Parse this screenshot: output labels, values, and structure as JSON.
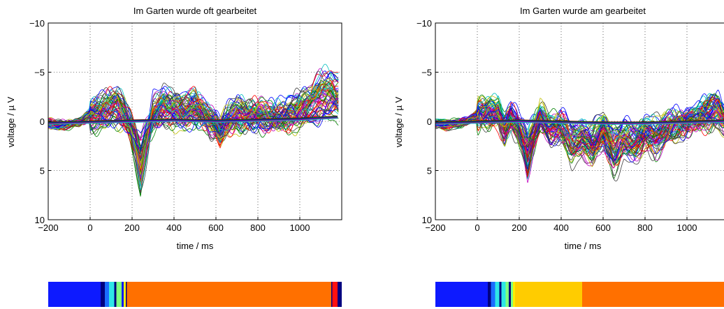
{
  "chart_data": [
    {
      "type": "line",
      "title": "Im Garten wurde oft gearbeitet",
      "xlabel": "time / ms",
      "ylabel": "voltage / µ V",
      "xlim": [
        -200,
        1200
      ],
      "ylim": [
        10,
        -10
      ],
      "y_axis_inverted": true,
      "grid": true,
      "x_ticks": [
        -200,
        0,
        200,
        400,
        600,
        800,
        1000
      ],
      "y_ticks": [
        -10,
        -5,
        0,
        5,
        10
      ],
      "series_count": 64,
      "series_colors": [
        "#0000ff",
        "#008000",
        "#ff0000",
        "#00bfbf",
        "#bf00bf",
        "#bfbf00",
        "#404040"
      ],
      "grand_average": {
        "x": [
          -200,
          -150,
          -100,
          -50,
          0,
          50,
          100,
          130,
          160,
          190,
          215,
          240,
          270,
          300,
          350,
          400,
          450,
          500,
          550,
          600,
          620,
          650,
          700,
          750,
          800,
          850,
          900,
          950,
          1000,
          1050,
          1100,
          1150,
          1180
        ],
        "y": [
          0.2,
          0.5,
          0.3,
          0.1,
          -0.8,
          -1.2,
          -1.8,
          -2.0,
          -1.0,
          0.5,
          2.5,
          5.0,
          2.0,
          -1.0,
          -1.8,
          -1.5,
          -1.2,
          -1.8,
          -0.8,
          0.5,
          1.2,
          0.0,
          -1.0,
          -0.8,
          -0.8,
          -0.5,
          -0.6,
          -1.0,
          -1.5,
          -2.0,
          -3.0,
          -3.5,
          -3.0
        ]
      },
      "flat_x": [
        -200,
        0,
        200,
        400,
        600,
        800,
        1000,
        1180
      ],
      "flat_y": [
        0.2,
        0.1,
        0.0,
        -0.1,
        0.0,
        -0.1,
        -0.2,
        -0.4
      ],
      "colorbar": {
        "segments": [
          {
            "from": -200,
            "to": 50,
            "color": "#0d1aff"
          },
          {
            "from": 50,
            "to": 70,
            "color": "#000080"
          },
          {
            "from": 70,
            "to": 90,
            "color": "#1a6cff"
          },
          {
            "from": 90,
            "to": 115,
            "color": "#2ee6e6"
          },
          {
            "from": 115,
            "to": 125,
            "color": "#000080"
          },
          {
            "from": 125,
            "to": 150,
            "color": "#7fff7f"
          },
          {
            "from": 150,
            "to": 160,
            "color": "#0d1aff"
          },
          {
            "from": 160,
            "to": 170,
            "color": "#ffee00"
          },
          {
            "from": 170,
            "to": 175,
            "color": "#000080"
          },
          {
            "from": 175,
            "to": 1150,
            "color": "#ff7000"
          },
          {
            "from": 1150,
            "to": 1155,
            "color": "#000080"
          },
          {
            "from": 1155,
            "to": 1180,
            "color": "#ff1010"
          },
          {
            "from": 1180,
            "to": 1200,
            "color": "#000080"
          }
        ]
      }
    },
    {
      "type": "line",
      "title": "Im Garten wurde am gearbeitet",
      "xlabel": "time / ms",
      "ylabel": "voltage / µ V",
      "xlim": [
        -200,
        1200
      ],
      "ylim": [
        10,
        -10
      ],
      "y_axis_inverted": true,
      "grid": true,
      "x_ticks": [
        -200,
        0,
        200,
        400,
        600,
        800,
        1000
      ],
      "y_ticks": [
        -10,
        -5,
        0,
        5,
        10
      ],
      "series_count": 64,
      "series_colors": [
        "#0000ff",
        "#008000",
        "#ff0000",
        "#00bfbf",
        "#bf00bf",
        "#bfbf00",
        "#404040"
      ],
      "grand_average": {
        "x": [
          -200,
          -150,
          -100,
          -50,
          0,
          50,
          100,
          130,
          160,
          190,
          215,
          240,
          270,
          300,
          350,
          400,
          450,
          500,
          550,
          600,
          650,
          700,
          750,
          800,
          850,
          900,
          950,
          1000,
          1050,
          1100,
          1150,
          1180
        ],
        "y": [
          0.2,
          0.4,
          0.3,
          0.0,
          -0.8,
          -1.0,
          -1.0,
          1.0,
          -0.5,
          0.5,
          2.0,
          4.0,
          1.5,
          -0.5,
          1.0,
          0.5,
          2.5,
          2.0,
          3.0,
          1.0,
          3.5,
          2.0,
          2.5,
          1.5,
          2.0,
          1.0,
          0.5,
          0.0,
          -0.5,
          -1.0,
          -1.2,
          0.0
        ]
      },
      "flat_x": [
        -200,
        0,
        200,
        400,
        600,
        800,
        1000,
        1180
      ],
      "flat_y": [
        0.2,
        0.1,
        0.0,
        0.1,
        0.2,
        0.2,
        0.1,
        0.0
      ],
      "colorbar": {
        "segments": [
          {
            "from": -200,
            "to": 50,
            "color": "#0d1aff"
          },
          {
            "from": 50,
            "to": 65,
            "color": "#000080"
          },
          {
            "from": 65,
            "to": 85,
            "color": "#1a6cff"
          },
          {
            "from": 85,
            "to": 105,
            "color": "#2ee6e6"
          },
          {
            "from": 105,
            "to": 115,
            "color": "#000080"
          },
          {
            "from": 115,
            "to": 135,
            "color": "#2ee6e6"
          },
          {
            "from": 135,
            "to": 150,
            "color": "#7fff7f"
          },
          {
            "from": 150,
            "to": 160,
            "color": "#000080"
          },
          {
            "from": 160,
            "to": 170,
            "color": "#7fff7f"
          },
          {
            "from": 170,
            "to": 180,
            "color": "#ffee00"
          },
          {
            "from": 180,
            "to": 500,
            "color": "#ffcc00"
          },
          {
            "from": 500,
            "to": 750,
            "color": "#ff7000"
          },
          {
            "from": 750,
            "to": 1200,
            "color": "#ff7000"
          }
        ]
      }
    }
  ]
}
